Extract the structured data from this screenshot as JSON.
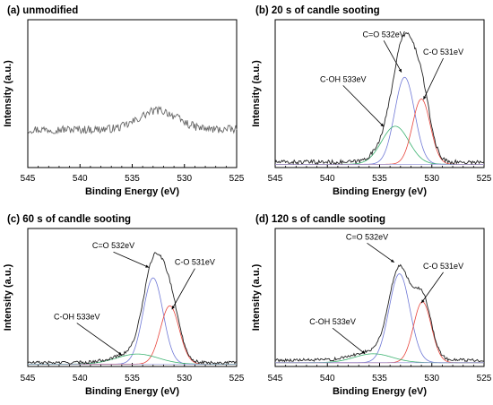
{
  "chart_data": [
    {
      "type": "line",
      "title": "(a) unmodified",
      "xlabel": "Binding Energy (eV)",
      "ylabel": "Intensity (a.u.)",
      "xlim": [
        545,
        525
      ],
      "x_ticks": [
        "545",
        "540",
        "535",
        "530",
        "525"
      ],
      "baseline": 0.28,
      "raw_peak": {
        "center": 532.5,
        "height": 0.14,
        "width": 1.8
      },
      "noise": 0.03,
      "components": [],
      "annotations": []
    },
    {
      "type": "line",
      "title": "(b) 20 s of candle sooting",
      "xlabel": "Binding Energy (eV)",
      "ylabel": "Intensity (a.u.)",
      "xlim": [
        545,
        525
      ],
      "x_ticks": [
        "545",
        "540",
        "535",
        "530",
        "525"
      ],
      "baseline": 0.04,
      "noise": 0.015,
      "components": [
        {
          "label": "C=O 532eV",
          "center": 532.6,
          "height": 0.64,
          "width": 0.95,
          "color": "#6f78d6"
        },
        {
          "label": "C-OH 533eV",
          "center": 533.5,
          "height": 0.28,
          "width": 1.3,
          "color": "#3cb371"
        },
        {
          "label": "C-O 531eV",
          "center": 531.0,
          "height": 0.48,
          "width": 0.85,
          "color": "#e8453c"
        }
      ],
      "annotations": [
        {
          "text": "C=O 532eV",
          "x": 534.6,
          "y": 0.96,
          "to_x": 532.9,
          "to_y": 0.7
        },
        {
          "text": "C-OH 533eV",
          "x": 538.5,
          "y": 0.63,
          "to_x": 534.6,
          "to_y": 0.3
        },
        {
          "text": "C-O 531eV",
          "x": 528.9,
          "y": 0.83,
          "to_x": 530.8,
          "to_y": 0.5
        }
      ]
    },
    {
      "type": "line",
      "title": "(c) 60 s of candle sooting",
      "xlabel": "Binding Energy (eV)",
      "ylabel": "Intensity (a.u.)",
      "xlim": [
        545,
        525
      ],
      "x_ticks": [
        "545",
        "540",
        "535",
        "530",
        "525"
      ],
      "baseline": 0.03,
      "noise": 0.012,
      "components": [
        {
          "label": "C=O 532eV",
          "center": 533.0,
          "height": 0.68,
          "width": 0.95,
          "color": "#6f78d6"
        },
        {
          "label": "C-O 531eV",
          "center": 531.4,
          "height": 0.46,
          "width": 0.9,
          "color": "#e8453c"
        },
        {
          "label": "C-OH 533eV",
          "center": 534.5,
          "height": 0.08,
          "width": 2.0,
          "color": "#3cb371"
        }
      ],
      "annotations": [
        {
          "text": "C=O 532eV",
          "x": 536.8,
          "y": 0.93,
          "to_x": 533.4,
          "to_y": 0.78
        },
        {
          "text": "C-O 531eV",
          "x": 529.0,
          "y": 0.8,
          "to_x": 531.2,
          "to_y": 0.45
        },
        {
          "text": "C-OH 533eV",
          "x": 540.3,
          "y": 0.37,
          "to_x": 536.0,
          "to_y": 0.09
        }
      ]
    },
    {
      "type": "line",
      "title": "(d) 120 s of candle sooting",
      "xlabel": "Binding Energy (eV)",
      "ylabel": "Intensity (a.u.)",
      "xlim": [
        545,
        525
      ],
      "x_ticks": [
        "545",
        "540",
        "535",
        "530",
        "525"
      ],
      "baseline": 0.05,
      "noise": 0.012,
      "components": [
        {
          "label": "C=O 532eV",
          "center": 533.1,
          "height": 0.7,
          "width": 1.0,
          "color": "#6f78d6"
        },
        {
          "label": "C-O 531eV",
          "center": 530.9,
          "height": 0.48,
          "width": 0.85,
          "color": "#e8453c"
        },
        {
          "label": "C-OH 533eV",
          "center": 535.6,
          "height": 0.07,
          "width": 1.8,
          "color": "#3cb371"
        }
      ],
      "annotations": [
        {
          "text": "C=O 532eV",
          "x": 536.2,
          "y": 1.0,
          "to_x": 533.6,
          "to_y": 0.82
        },
        {
          "text": "C-O 531eV",
          "x": 528.9,
          "y": 0.77,
          "to_x": 531.0,
          "to_y": 0.5
        },
        {
          "text": "C-OH 533eV",
          "x": 539.5,
          "y": 0.33,
          "to_x": 536.4,
          "to_y": 0.1
        }
      ]
    }
  ]
}
